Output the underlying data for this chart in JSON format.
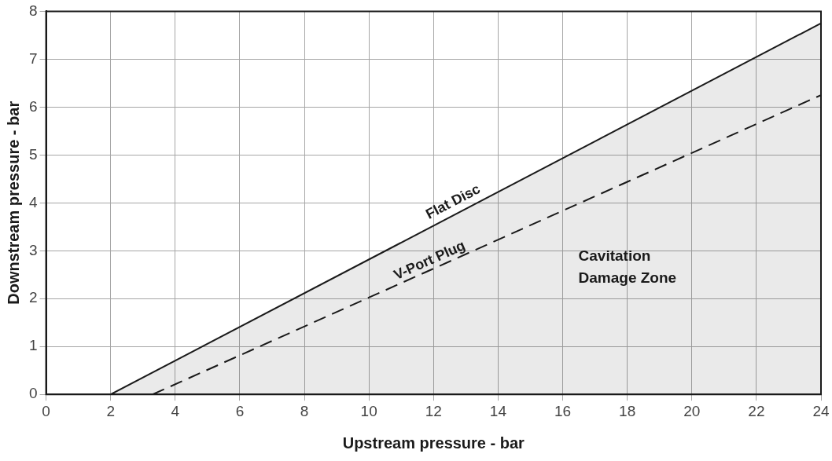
{
  "chart_data": {
    "type": "line",
    "xlabel": "Upstream pressure - bar",
    "ylabel": "Downstream pressure - bar",
    "xlim": [
      0,
      24
    ],
    "xticks": [
      0,
      2,
      4,
      6,
      8,
      10,
      12,
      14,
      16,
      18,
      20,
      22,
      24
    ],
    "ylim": [
      0,
      8
    ],
    "yticks": [
      0,
      1,
      2,
      3,
      4,
      5,
      6,
      7,
      8
    ],
    "grid": true,
    "legend": false,
    "marker": "none",
    "series": [
      {
        "name": "Flat Disc",
        "type": "area",
        "color": "#1a1a1a",
        "x": [
          2,
          24
        ],
        "values": [
          0,
          7.75
        ],
        "line_style": "solid"
      },
      {
        "name": "V-Port Plug",
        "type": "line",
        "color": "#1a1a1a",
        "x": [
          3.3,
          24
        ],
        "values": [
          0,
          6.25
        ],
        "line_style": "dashed"
      }
    ],
    "annotations": [
      "Cavitation\nDamage Zone"
    ]
  }
}
